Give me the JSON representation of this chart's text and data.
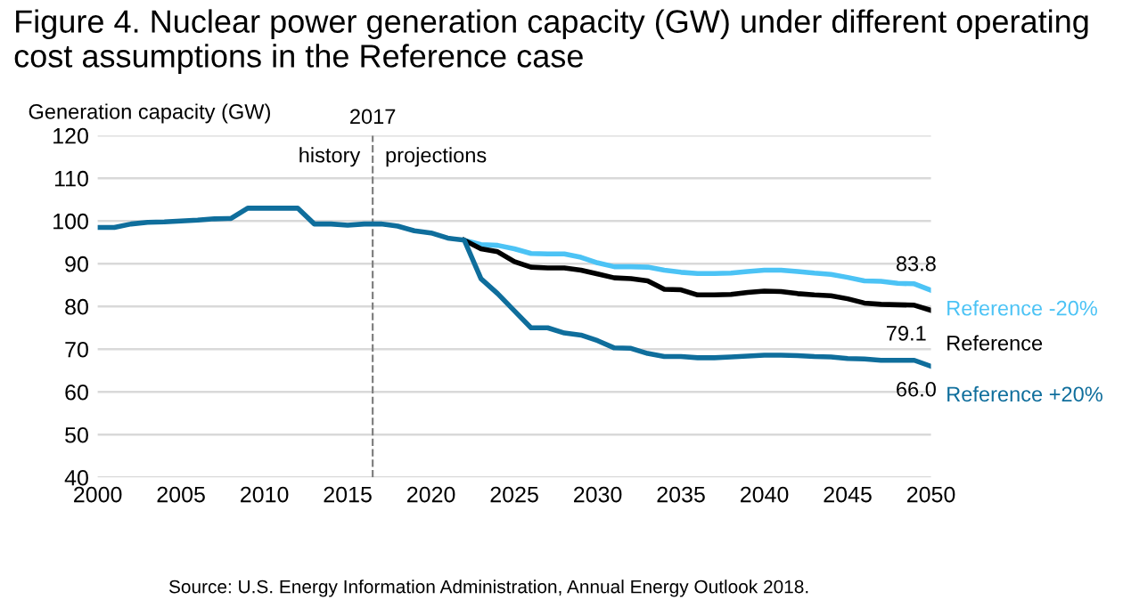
{
  "chart_data": {
    "type": "line",
    "title": "Figure 4. Nuclear power generation capacity (GW) under different operating cost assumptions in the Reference case",
    "ylabel": "Generation capacity (GW)",
    "x": [
      2000,
      2001,
      2002,
      2003,
      2004,
      2005,
      2006,
      2007,
      2008,
      2009,
      2010,
      2011,
      2012,
      2013,
      2014,
      2015,
      2016,
      2017,
      2018,
      2019,
      2020,
      2021,
      2022,
      2023,
      2024,
      2025,
      2026,
      2027,
      2028,
      2029,
      2030,
      2031,
      2032,
      2033,
      2034,
      2035,
      2036,
      2037,
      2038,
      2039,
      2040,
      2041,
      2042,
      2043,
      2044,
      2045,
      2046,
      2047,
      2048,
      2049,
      2050
    ],
    "series": [
      {
        "name": "Reference -20%",
        "color": "#4cc3f5",
        "values": [
          null,
          null,
          null,
          null,
          null,
          null,
          null,
          null,
          null,
          null,
          null,
          null,
          null,
          null,
          null,
          null,
          null,
          null,
          null,
          null,
          null,
          null,
          95.5,
          94.5,
          94.3,
          93.5,
          92.4,
          92.3,
          92.3,
          91.5,
          90.2,
          89.3,
          89.3,
          89.2,
          88.5,
          88.0,
          87.7,
          87.7,
          87.8,
          88.2,
          88.5,
          88.5,
          88.2,
          87.8,
          87.5,
          86.8,
          86.0,
          85.9,
          85.4,
          85.3,
          83.8
        ],
        "value_labels": [
          null,
          null,
          null,
          null,
          null,
          null,
          null,
          null,
          null,
          null,
          null,
          null,
          null,
          null,
          null,
          null,
          null,
          null,
          null,
          null,
          null,
          null,
          null,
          null,
          null,
          null,
          null,
          null,
          null,
          null,
          null,
          null,
          null,
          null,
          null,
          null,
          null,
          null,
          null,
          null,
          null,
          null,
          null,
          null,
          null,
          null,
          null,
          null,
          null,
          null,
          "83.8"
        ]
      },
      {
        "name": "Reference",
        "color": "#000000",
        "values": [
          null,
          null,
          null,
          null,
          null,
          null,
          null,
          null,
          null,
          null,
          null,
          null,
          null,
          null,
          null,
          null,
          null,
          null,
          null,
          null,
          null,
          null,
          95.5,
          93.5,
          92.8,
          90.5,
          89.2,
          89.0,
          89.0,
          88.5,
          87.6,
          86.7,
          86.5,
          86.0,
          84.0,
          83.9,
          82.7,
          82.7,
          82.8,
          83.3,
          83.6,
          83.5,
          83.0,
          82.7,
          82.5,
          81.8,
          80.8,
          80.5,
          80.4,
          80.3,
          79.1
        ],
        "value_labels": [
          null,
          null,
          null,
          null,
          null,
          null,
          null,
          null,
          null,
          null,
          null,
          null,
          null,
          null,
          null,
          null,
          null,
          null,
          null,
          null,
          null,
          null,
          null,
          null,
          null,
          null,
          null,
          null,
          null,
          null,
          null,
          null,
          null,
          null,
          null,
          null,
          null,
          null,
          null,
          null,
          null,
          null,
          null,
          null,
          null,
          null,
          null,
          null,
          null,
          null,
          "79.1"
        ]
      },
      {
        "name": "Reference +20%",
        "color": "#0f6e9c",
        "values": [
          98.5,
          98.5,
          99.3,
          99.7,
          99.8,
          100.0,
          100.2,
          100.5,
          100.6,
          103.0,
          103.0,
          103.0,
          103.0,
          99.3,
          99.3,
          99.0,
          99.3,
          99.3,
          98.8,
          97.7,
          97.2,
          96.0,
          95.5,
          86.5,
          83.0,
          79.0,
          75.0,
          75.0,
          73.8,
          73.3,
          72.0,
          70.3,
          70.2,
          69.0,
          68.3,
          68.3,
          68.0,
          68.0,
          68.2,
          68.4,
          68.6,
          68.6,
          68.5,
          68.3,
          68.2,
          67.8,
          67.7,
          67.4,
          67.4,
          67.4,
          66.0
        ],
        "value_labels": [
          null,
          null,
          null,
          null,
          null,
          null,
          null,
          null,
          null,
          null,
          null,
          null,
          null,
          null,
          null,
          null,
          null,
          null,
          null,
          null,
          null,
          null,
          null,
          null,
          null,
          null,
          null,
          null,
          null,
          null,
          null,
          null,
          null,
          null,
          null,
          null,
          null,
          null,
          null,
          null,
          null,
          null,
          null,
          null,
          null,
          null,
          null,
          null,
          null,
          null,
          "66.0"
        ]
      }
    ],
    "xlim": [
      2000,
      2050
    ],
    "xticks": [
      2000,
      2005,
      2010,
      2015,
      2020,
      2025,
      2030,
      2035,
      2040,
      2045,
      2050
    ],
    "ylim": [
      40,
      120
    ],
    "yticks": [
      40,
      50,
      60,
      70,
      80,
      90,
      100,
      110,
      120
    ],
    "grid": "y",
    "legend": false,
    "marker": "none",
    "line_style": "solid",
    "ref_lines": [
      {
        "axis": "x",
        "value": 2016.5,
        "label": "2017",
        "color": "#808080",
        "line_style": "dashed"
      }
    ],
    "annotations": [
      {
        "text": "history",
        "x": 2016.5,
        "y": 115
      },
      {
        "text": "projections",
        "x": 2016.5,
        "y": 115
      },
      "Source: U.S. Energy Information Administration, Annual Energy Outlook 2018."
    ]
  }
}
